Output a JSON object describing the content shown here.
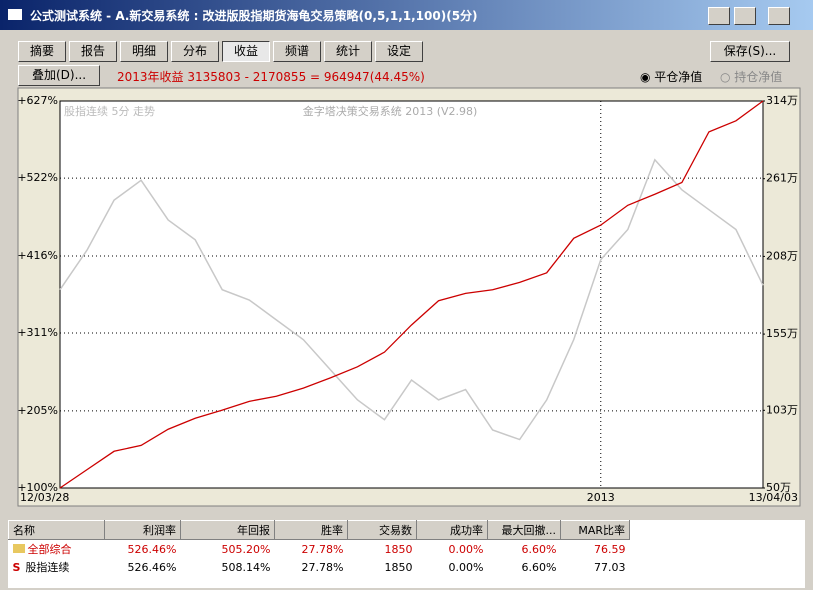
{
  "window": {
    "title": "公式测试系统 - A.新交易系统 : 改进版股指期货海龟交易策略(0,5,1,1,100)(5分)"
  },
  "tabs": [
    "摘要",
    "报告",
    "明细",
    "分布",
    "收益",
    "频谱",
    "统计",
    "设定"
  ],
  "save_button": "保存(S)...",
  "overlay_button": "叠加(D)...",
  "summary": "2013年收益 3135803 - 2170855 = 964947(44.45%)",
  "radios": [
    "平仓净值",
    "持仓净值"
  ],
  "chart": {
    "type": "line",
    "subtitle_left": "股指连续 5分 走势",
    "subtitle_center": "金字塔决策交易系统 2013 (V2.98)",
    "categories": [
      "12/03/28",
      null,
      null,
      null,
      null,
      null,
      null,
      null,
      null,
      null,
      null,
      null,
      null,
      null,
      null,
      null,
      null,
      null,
      null,
      null,
      "2013",
      null,
      null,
      null,
      null,
      null,
      "13/04/03"
    ],
    "series": [
      {
        "color": "#c8c8c8",
        "values": [
          370,
          424,
          492,
          519,
          465,
          438,
          370,
          356,
          329,
          302,
          261,
          220,
          193,
          247,
          220,
          234,
          179,
          166,
          220,
          302,
          411,
          452,
          547,
          506,
          479,
          452,
          376
        ]
      },
      {
        "color": "#cc0000",
        "values": [
          100,
          125,
          150,
          158,
          180,
          195,
          206,
          218,
          225,
          236,
          250,
          265,
          285,
          322,
          355,
          365,
          370,
          380,
          393,
          440,
          458,
          485,
          500,
          516,
          585,
          600,
          627
        ]
      }
    ],
    "ylim": [
      100,
      627
    ],
    "yticks": [
      {
        "value": 100,
        "label": "+100%"
      },
      {
        "value": 205,
        "label": "+205%"
      },
      {
        "value": 311,
        "label": "+311%"
      },
      {
        "value": 416,
        "label": "+416%"
      },
      {
        "value": 522,
        "label": "+522%"
      },
      {
        "value": 627,
        "label": "+627%"
      }
    ],
    "y2lim": [
      50,
      314
    ],
    "y2ticks": [
      {
        "value": 50,
        "label": "50万"
      },
      {
        "value": 103,
        "label": "103万"
      },
      {
        "value": 155,
        "label": "155万"
      },
      {
        "value": 208,
        "label": "208万"
      },
      {
        "value": 261,
        "label": "261万"
      },
      {
        "value": 314,
        "label": "314万"
      }
    ],
    "grid": true
  },
  "table": {
    "headers": [
      "名称",
      "利润率",
      "年回报",
      "胜率",
      "交易数",
      "成功率",
      "最大回撤...",
      "MAR比率"
    ],
    "s_icon": "S",
    "rows": [
      [
        "全部综合",
        "526.46%",
        "505.20%",
        "27.78%",
        "1850",
        "0.00%",
        "6.60%",
        "76.59"
      ],
      [
        "股指连续",
        "526.46%",
        "508.14%",
        "27.78%",
        "1850",
        "0.00%",
        "6.60%",
        "77.03"
      ]
    ]
  }
}
